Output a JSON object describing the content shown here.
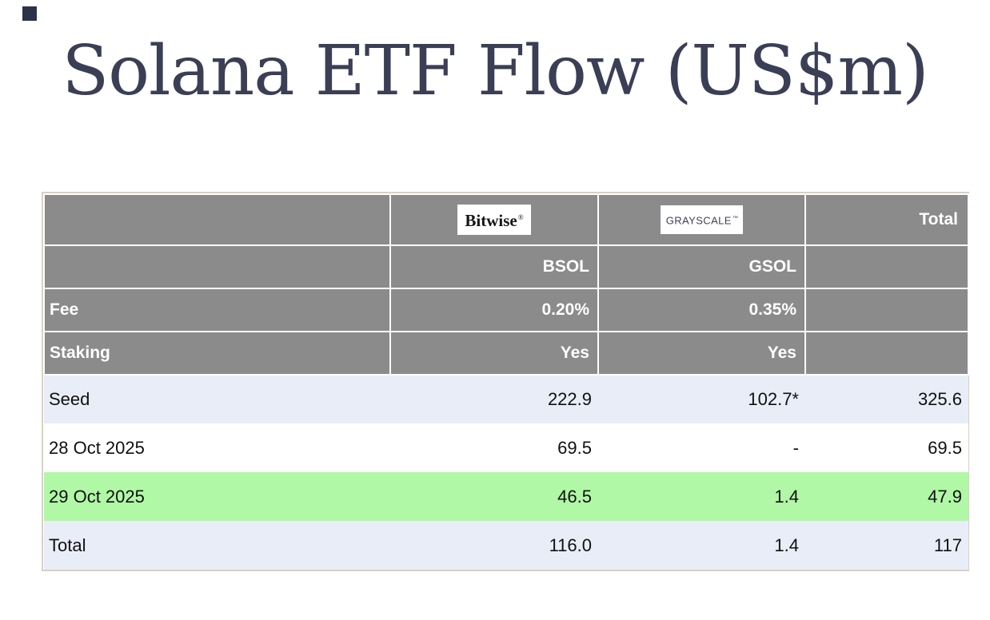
{
  "page": {
    "title": "Solana ETF Flow (US$m)"
  },
  "colors": {
    "title_color": "#3a3f55",
    "header_bg": "#8b8b8b",
    "header_text": "#ffffff",
    "row_alt_bg": "#e9edf8",
    "row_white_bg": "#ffffff",
    "row_highlight_bg": "#b0f8a6",
    "outer_border": "#d9d1c4",
    "grayscale_logo_color": "#423f59",
    "bitwise_logo_color": "#161616",
    "data_text": "#101010"
  },
  "table": {
    "brands": {
      "bitwise": "Bitwise",
      "bitwise_mark": "®",
      "grayscale": "GRAYSCALE",
      "grayscale_mark": "™",
      "total_label": "Total"
    },
    "tickers": {
      "bsol": "BSOL",
      "gsol": "GSOL"
    },
    "meta_rows": [
      {
        "label": "Fee",
        "bsol": "0.20%",
        "gsol": "0.35%",
        "total": ""
      },
      {
        "label": "Staking",
        "bsol": "Yes",
        "gsol": "Yes",
        "total": ""
      }
    ],
    "data_rows": [
      {
        "label": "Seed",
        "bsol": "222.9",
        "gsol": "102.7*",
        "total": "325.6"
      },
      {
        "label": "28 Oct 2025",
        "bsol": "69.5",
        "gsol": "-",
        "total": "69.5"
      },
      {
        "label": "29 Oct 2025",
        "bsol": "46.5",
        "gsol": "1.4",
        "total": "47.9"
      },
      {
        "label": "Total",
        "bsol": "116.0",
        "gsol": "1.4",
        "total": "117"
      }
    ]
  },
  "chart_data": {
    "type": "table",
    "title": "Solana ETF Flow (US$m)",
    "columns": [
      "",
      "Bitwise BSOL",
      "Grayscale GSOL",
      "Total"
    ],
    "rows": [
      [
        "Fee",
        "0.20%",
        "0.35%",
        ""
      ],
      [
        "Staking",
        "Yes",
        "Yes",
        ""
      ],
      [
        "Seed",
        222.9,
        "102.7*",
        325.6
      ],
      [
        "28 Oct 2025",
        69.5,
        "-",
        69.5
      ],
      [
        "29 Oct 2025",
        46.5,
        1.4,
        47.9
      ],
      [
        "Total",
        116.0,
        1.4,
        117
      ]
    ],
    "notes": "29 Oct 2025 row highlighted green; Seed and Total rows light periwinkle; header rows gray with white text"
  }
}
